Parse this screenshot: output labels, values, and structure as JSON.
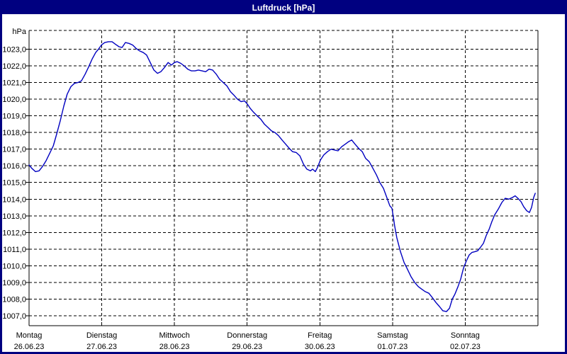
{
  "window": {
    "title": "Luftdruck [hPa]"
  },
  "colors": {
    "titlebar_bg": "#000080",
    "titlebar_text": "#ffffff",
    "window_border": "#000080",
    "plot_bg": "#ffffff",
    "grid": "#000000",
    "curve": "#0000C0"
  },
  "chart_data": {
    "type": "line",
    "title": "Luftdruck [hPa]",
    "grid": true,
    "legend": false,
    "y_axis": {
      "unit": "hPa",
      "tick_values": [
        1023,
        1022,
        1021,
        1020,
        1019,
        1018,
        1017,
        1016,
        1015,
        1014,
        1013,
        1012,
        1011,
        1010,
        1009,
        1008,
        1007
      ],
      "tick_labels": [
        "1023,0",
        "1022,0",
        "1021,0",
        "1020,0",
        "1019,0",
        "1018,0",
        "1017,0",
        "1016,0",
        "1015,0",
        "1014,0",
        "1013,0",
        "1012,0",
        "1011,0",
        "1010,0",
        "1009,0",
        "1008,0",
        "1007,0"
      ],
      "range_approx": [
        1006.5,
        1024
      ]
    },
    "x_axis": {
      "span_hours": 168,
      "days": [
        {
          "weekday": "Montag",
          "date": "26.06.23"
        },
        {
          "weekday": "Dienstag",
          "date": "27.06.23"
        },
        {
          "weekday": "Mittwoch",
          "date": "28.06.23"
        },
        {
          "weekday": "Donnerstag",
          "date": "29.06.23"
        },
        {
          "weekday": "Freitag",
          "date": "30.06.23"
        },
        {
          "weekday": "Samstag",
          "date": "01.07.23"
        },
        {
          "weekday": "Sonntag",
          "date": "02.07.23"
        }
      ]
    },
    "series": [
      {
        "name": "Luftdruck",
        "unit": "hPa",
        "color": "#0000C0",
        "hours": [
          0,
          0.9,
          2.1,
          3.3,
          4.4,
          5.6,
          6.8,
          8,
          9.1,
          10.3,
          11.5,
          12.6,
          13.8,
          15,
          16.1,
          17.3,
          18.5,
          19.7,
          20.8,
          22,
          22.9,
          23.9,
          25,
          26.2,
          27.4,
          28.5,
          29.7,
          30.7,
          31.8,
          33,
          34.2,
          35.3,
          36.5,
          37.7,
          38.8,
          40,
          41.2,
          42.4,
          43.5,
          44.7,
          45.9,
          47,
          48,
          48.9,
          50.1,
          51.2,
          52.4,
          53.6,
          54.8,
          55.9,
          57.1,
          58.3,
          59.4,
          60.6,
          61.8,
          62.9,
          64.1,
          65.3,
          66.5,
          67.6,
          68.8,
          70,
          71.1,
          72.1,
          73,
          74.2,
          75.3,
          76.5,
          77.7,
          78.9,
          80,
          81.2,
          82.4,
          83.5,
          84.7,
          85.9,
          87,
          88.2,
          89.4,
          90.6,
          91.7,
          92.9,
          93.6,
          94.5,
          95.2,
          96.2,
          97.3,
          98.5,
          99.7,
          100.9,
          102,
          103.2,
          104.4,
          105.5,
          106.5,
          107.6,
          108.8,
          110,
          111.1,
          112.3,
          113.5,
          114.7,
          115.8,
          117,
          118.2,
          119.1,
          119.8,
          120.3,
          120.7,
          121.4,
          122.6,
          123.8,
          124.9,
          126.1,
          127.3,
          128.5,
          129.6,
          130.8,
          132,
          133.1,
          134.3,
          135.5,
          136.6,
          137.8,
          138.8,
          139.7,
          140.6,
          141.6,
          142.5,
          143.4,
          144.4,
          145.3,
          146.2,
          147.2,
          148.1,
          149,
          150,
          150.9,
          151.9,
          152.8,
          153.7,
          154.9,
          156.1,
          157.2,
          158.4,
          159.6,
          160.5,
          161.4,
          162.4,
          163.3,
          164.3,
          165.2,
          165.9,
          166.6,
          167.1
        ],
        "values": [
          1016.05,
          1015.85,
          1015.65,
          1015.7,
          1015.95,
          1016.3,
          1016.75,
          1017.2,
          1017.9,
          1018.7,
          1019.6,
          1020.3,
          1020.75,
          1020.95,
          1021,
          1021.1,
          1021.5,
          1021.95,
          1022.4,
          1022.8,
          1023,
          1023.25,
          1023.4,
          1023.45,
          1023.45,
          1023.3,
          1023.15,
          1023.1,
          1023.4,
          1023.35,
          1023.25,
          1023.05,
          1022.9,
          1022.8,
          1022.65,
          1022.2,
          1021.75,
          1021.55,
          1021.65,
          1021.9,
          1022.2,
          1022.05,
          1022.2,
          1022.25,
          1022.15,
          1022,
          1021.8,
          1021.7,
          1021.7,
          1021.75,
          1021.7,
          1021.65,
          1021.8,
          1021.75,
          1021.5,
          1021.2,
          1021,
          1020.8,
          1020.45,
          1020.25,
          1020,
          1019.85,
          1019.9,
          1019.7,
          1019.45,
          1019.2,
          1019,
          1018.8,
          1018.5,
          1018.3,
          1018.1,
          1018,
          1017.8,
          1017.55,
          1017.3,
          1017.05,
          1016.85,
          1016.8,
          1016.6,
          1016.1,
          1015.8,
          1015.7,
          1015.8,
          1015.65,
          1015.9,
          1016.35,
          1016.65,
          1016.85,
          1017,
          1016.95,
          1016.9,
          1017.15,
          1017.3,
          1017.45,
          1017.55,
          1017.3,
          1017.05,
          1016.85,
          1016.45,
          1016.25,
          1015.85,
          1015.45,
          1015,
          1014.65,
          1014.05,
          1013.6,
          1013.45,
          1012.9,
          1012.4,
          1011.7,
          1010.85,
          1010.2,
          1009.8,
          1009.35,
          1009,
          1008.75,
          1008.6,
          1008.45,
          1008.35,
          1008.1,
          1007.8,
          1007.55,
          1007.3,
          1007.25,
          1007.45,
          1008,
          1008.3,
          1008.75,
          1009.2,
          1009.85,
          1010.3,
          1010.65,
          1010.8,
          1010.85,
          1010.9,
          1011.1,
          1011.35,
          1011.8,
          1012.2,
          1012.65,
          1013.05,
          1013.4,
          1013.8,
          1014.05,
          1014,
          1014.1,
          1014.2,
          1014.05,
          1013.85,
          1013.55,
          1013.3,
          1013.2,
          1013.5,
          1014.1,
          1014.35
        ]
      }
    ]
  }
}
